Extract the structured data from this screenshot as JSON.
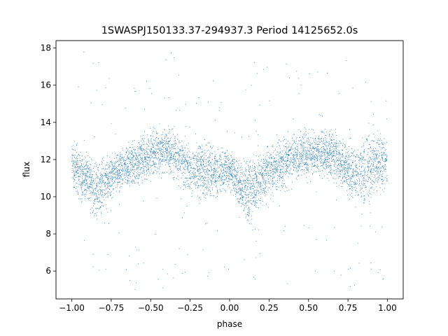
{
  "chart_data": {
    "type": "scatter",
    "title": "1SWASPJ150133.37-294937.3 Period 14125652.0s",
    "xlabel": "phase",
    "ylabel": "flux",
    "xlim": [
      -1.1,
      1.1
    ],
    "ylim": [
      4.5,
      18.4
    ],
    "x_ticks": [
      -1.0,
      -0.75,
      -0.5,
      -0.25,
      0.0,
      0.25,
      0.5,
      0.75,
      1.0
    ],
    "x_tick_labels": [
      "−1.00",
      "−0.75",
      "−0.50",
      "−0.25",
      "0.00",
      "0.25",
      "0.50",
      "0.75",
      "1.00"
    ],
    "y_ticks": [
      6,
      8,
      10,
      12,
      14,
      16,
      18
    ],
    "y_tick_labels": [
      "6",
      "8",
      "10",
      "12",
      "14",
      "16",
      "18"
    ],
    "grid": false,
    "point_color": "#1f77b4",
    "series": [
      {
        "profile_phase": [
          -1.0,
          -0.95,
          -0.9,
          -0.85,
          -0.8,
          -0.75,
          -0.7,
          -0.65,
          -0.6,
          -0.55,
          -0.5,
          -0.45,
          -0.4,
          -0.35,
          -0.3,
          -0.25,
          -0.2,
          -0.15,
          -0.1,
          -0.05,
          0.0,
          0.05,
          0.1,
          0.15,
          0.2,
          0.25,
          0.3,
          0.35,
          0.4,
          0.45,
          0.5,
          0.55,
          0.6,
          0.65,
          0.7,
          0.75,
          0.8,
          0.85,
          0.9,
          0.95,
          1.0
        ],
        "profile_low": [
          10.0,
          9.0,
          9.5,
          8.0,
          8.8,
          9.5,
          9.8,
          10.0,
          10.2,
          10.3,
          10.5,
          10.8,
          10.8,
          10.6,
          10.2,
          9.6,
          9.2,
          9.0,
          9.5,
          9.8,
          10.0,
          9.0,
          8.2,
          8.0,
          8.8,
          9.5,
          9.8,
          10.0,
          10.2,
          10.5,
          10.5,
          10.8,
          10.6,
          10.4,
          10.0,
          9.5,
          9.0,
          8.8,
          9.2,
          9.8,
          10.0
        ],
        "profile_high": [
          13.5,
          13.0,
          12.8,
          12.6,
          12.5,
          12.8,
          13.0,
          13.2,
          13.5,
          13.8,
          14.0,
          14.2,
          14.2,
          14.0,
          13.6,
          13.2,
          13.4,
          13.6,
          13.2,
          13.0,
          12.8,
          12.6,
          12.5,
          12.8,
          13.0,
          13.2,
          13.4,
          13.6,
          13.8,
          14.0,
          14.0,
          14.2,
          14.2,
          14.0,
          13.8,
          13.6,
          13.6,
          13.8,
          14.0,
          14.0,
          13.8
        ],
        "outlier_range": [
          5.0,
          17.8
        ]
      }
    ]
  }
}
